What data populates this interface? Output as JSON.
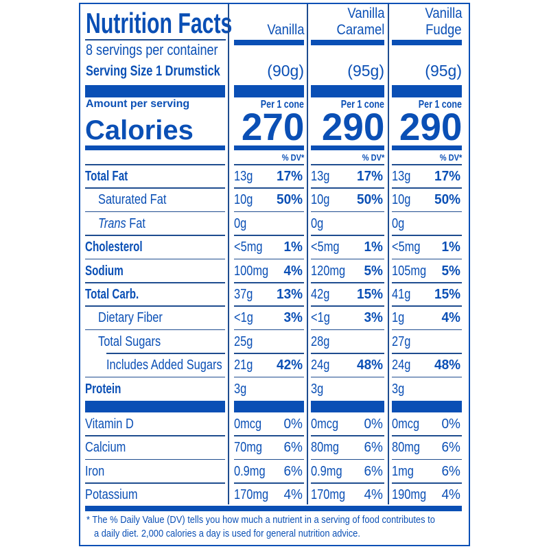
{
  "label": {
    "title": "Nutrition Facts",
    "servings_per_container": "8 servings per container",
    "serving_size": "Serving Size 1 Drumstick",
    "amount_per_serving": "Amount per serving",
    "calories_label": "Calories",
    "dv_header": "% DV*",
    "per_unit": "Per 1 cone",
    "footnote_line1": "* The % Daily Value (DV) tells you how much a nutrient in a serving of food contributes to",
    "footnote_line2": "a daily diet. 2,000 calories a day is used for general nutrition advice."
  },
  "colors": {
    "primary": "#0a4fb5",
    "rule": "#1e4c8f",
    "background": "#ffffff"
  },
  "columns": [
    {
      "name_line1": "",
      "name_line2": "Vanilla",
      "weight": "(90g)",
      "calories": "270"
    },
    {
      "name_line1": "Vanilla",
      "name_line2": "Caramel",
      "weight": "(95g)",
      "calories": "290"
    },
    {
      "name_line1": "Vanilla",
      "name_line2": "Fudge",
      "weight": "(95g)",
      "calories": "290"
    }
  ],
  "nutrients": [
    {
      "label": "Total Fat",
      "bold": true,
      "indent": 0,
      "values": [
        {
          "amount": "13g",
          "dv": "17%"
        },
        {
          "amount": "13g",
          "dv": "17%"
        },
        {
          "amount": "13g",
          "dv": "17%"
        }
      ]
    },
    {
      "label": "Saturated Fat",
      "bold": false,
      "indent": 1,
      "values": [
        {
          "amount": "10g",
          "dv": "50%"
        },
        {
          "amount": "10g",
          "dv": "50%"
        },
        {
          "amount": "10g",
          "dv": "50%"
        }
      ]
    },
    {
      "label": "Trans Fat",
      "label_italic": "Trans",
      "label_rest": " Fat",
      "bold": false,
      "indent": 1,
      "values": [
        {
          "amount": "0g",
          "dv": ""
        },
        {
          "amount": "0g",
          "dv": ""
        },
        {
          "amount": "0g",
          "dv": ""
        }
      ]
    },
    {
      "label": "Cholesterol",
      "bold": true,
      "indent": 0,
      "values": [
        {
          "amount": "<5mg",
          "dv": "1%"
        },
        {
          "amount": "<5mg",
          "dv": "1%"
        },
        {
          "amount": "<5mg",
          "dv": "1%"
        }
      ]
    },
    {
      "label": "Sodium",
      "bold": true,
      "indent": 0,
      "values": [
        {
          "amount": "100mg",
          "dv": "4%"
        },
        {
          "amount": "120mg",
          "dv": "5%"
        },
        {
          "amount": "105mg",
          "dv": "5%"
        }
      ]
    },
    {
      "label": "Total Carb.",
      "bold": true,
      "indent": 0,
      "values": [
        {
          "amount": "37g",
          "dv": "13%"
        },
        {
          "amount": "42g",
          "dv": "15%"
        },
        {
          "amount": "41g",
          "dv": "15%"
        }
      ]
    },
    {
      "label": "Dietary Fiber",
      "bold": false,
      "indent": 1,
      "values": [
        {
          "amount": "<1g",
          "dv": "3%"
        },
        {
          "amount": "<1g",
          "dv": "3%"
        },
        {
          "amount": "1g",
          "dv": "4%"
        }
      ]
    },
    {
      "label": "Total Sugars",
      "bold": false,
      "indent": 1,
      "values": [
        {
          "amount": "25g",
          "dv": ""
        },
        {
          "amount": "28g",
          "dv": ""
        },
        {
          "amount": "27g",
          "dv": ""
        }
      ]
    },
    {
      "label": "Includes Added Sugars",
      "bold": false,
      "indent": 2,
      "values": [
        {
          "amount": "21g",
          "dv": "42%"
        },
        {
          "amount": "24g",
          "dv": "48%"
        },
        {
          "amount": "24g",
          "dv": "48%"
        }
      ]
    },
    {
      "label": "Protein",
      "bold": true,
      "indent": 0,
      "values": [
        {
          "amount": "3g",
          "dv": ""
        },
        {
          "amount": "3g",
          "dv": ""
        },
        {
          "amount": "3g",
          "dv": ""
        }
      ]
    }
  ],
  "vitamins": [
    {
      "label": "Vitamin D",
      "values": [
        {
          "amount": "0mcg",
          "dv": "0%"
        },
        {
          "amount": "0mcg",
          "dv": "0%"
        },
        {
          "amount": "0mcg",
          "dv": "0%"
        }
      ]
    },
    {
      "label": "Calcium",
      "values": [
        {
          "amount": "70mg",
          "dv": "6%"
        },
        {
          "amount": "80mg",
          "dv": "6%"
        },
        {
          "amount": "80mg",
          "dv": "6%"
        }
      ]
    },
    {
      "label": "Iron",
      "values": [
        {
          "amount": "0.9mg",
          "dv": "6%"
        },
        {
          "amount": "0.9mg",
          "dv": "6%"
        },
        {
          "amount": "1mg",
          "dv": "6%"
        }
      ]
    },
    {
      "label": "Potassium",
      "values": [
        {
          "amount": "170mg",
          "dv": "4%"
        },
        {
          "amount": "170mg",
          "dv": "4%"
        },
        {
          "amount": "190mg",
          "dv": "4%"
        }
      ]
    }
  ]
}
